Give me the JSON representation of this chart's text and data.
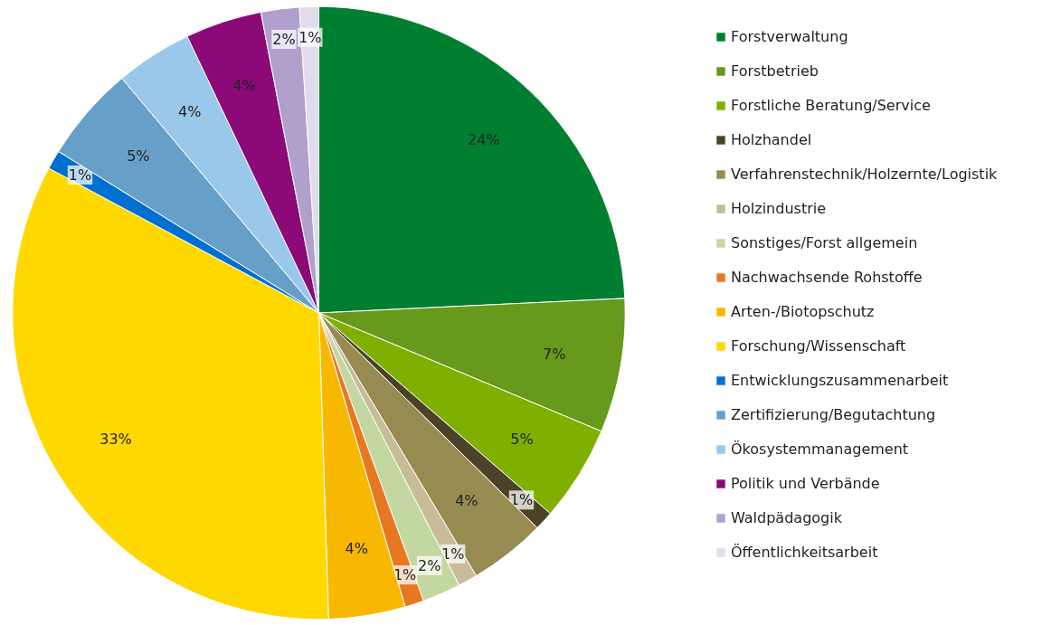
{
  "chart_data": {
    "type": "pie",
    "categories": [
      "Forstverwaltung",
      "Forstbetrieb",
      "Forstliche Beratung/Service",
      "Holzhandel",
      "Verfahrenstechnik/Holzernte/Logistik",
      "Holzindustrie",
      "Sonstiges/Forst allgemein",
      "Nachwachsende Rohstoffe",
      "Arten-/Biotopschutz",
      "Forschung/Wissenschaft",
      "Entwicklungszusammenarbeit",
      "Zertifizierung/Begutachtung",
      "Ökosystemmanagement",
      "Politik und Verbände",
      "Waldpädagogik",
      "Öffentlichkeitsarbeit"
    ],
    "values": [
      24,
      7,
      5,
      1,
      4,
      1,
      2,
      1,
      4,
      33,
      1,
      5,
      4,
      4,
      2,
      1
    ],
    "value_labels": [
      "24%",
      "7%",
      "5%",
      "1%",
      "4%",
      "1%",
      "2%",
      "1%",
      "4%",
      "33%",
      "1%",
      "5%",
      "4%",
      "4%",
      "2%",
      "1%"
    ],
    "colors": [
      "#007f31",
      "#66991c",
      "#7fb000",
      "#4b4328",
      "#978b52",
      "#c8bc98",
      "#c3d8a0",
      "#e87722",
      "#f9b800",
      "#ffd800",
      "#0070d0",
      "#66a0c8",
      "#9ac8ea",
      "#8b0a78",
      "#b0a0cc",
      "#e0dcec"
    ],
    "legend": "right"
  }
}
